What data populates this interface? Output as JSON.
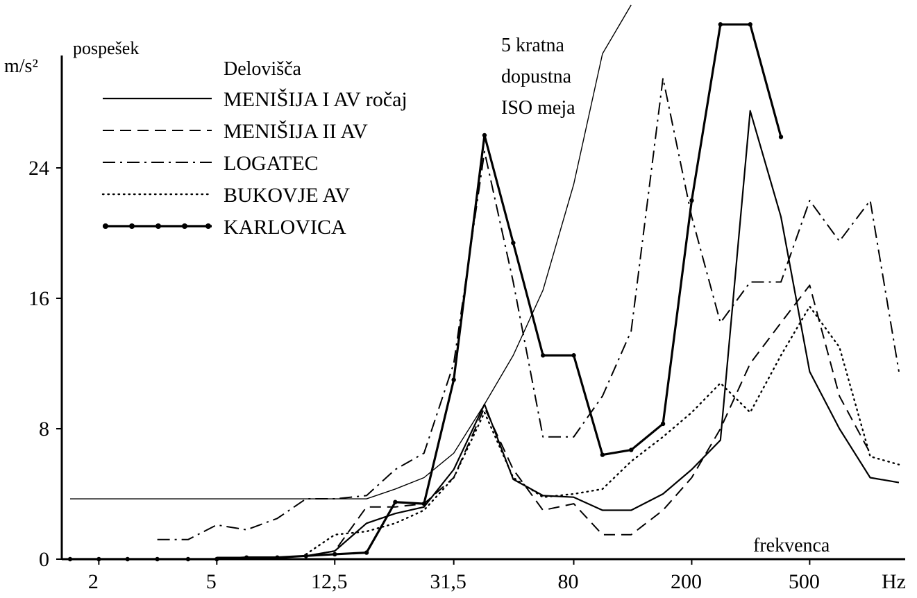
{
  "chart_data": {
    "type": "line",
    "x_label": "frekvenca",
    "x_unit": "Hz",
    "y_label": "pospešek",
    "y_unit": "m/s²",
    "legend_title": "Delovišča",
    "log_x": true,
    "xlim": [
      1.5,
      1050
    ],
    "xticks": [
      2,
      5,
      {
        "value": 12.5,
        "label": "12,5"
      },
      {
        "value": 31.5,
        "label": "31,5"
      },
      80,
      200,
      500
    ],
    "ylim": [
      0,
      34
    ],
    "yticks": [
      0,
      8,
      16,
      24
    ],
    "x": [
      1.6,
      2,
      2.5,
      3.15,
      4,
      5,
      6.3,
      8,
      10,
      12.5,
      16,
      20,
      25,
      31.5,
      40,
      50,
      63,
      80,
      100,
      125,
      160,
      200,
      250,
      315,
      400,
      500,
      630,
      800,
      1000
    ],
    "series": [
      {
        "name": "MENIŠIJA I AV ročaj",
        "color": "#000000",
        "style": "solid",
        "values": [
          null,
          null,
          null,
          null,
          null,
          0.1,
          0.1,
          0.1,
          0.2,
          0.5,
          2.2,
          2.8,
          3.2,
          5.5,
          9.5,
          4.9,
          3.9,
          3.8,
          3,
          3,
          4,
          5.5,
          7.3,
          27.5,
          21,
          11.5,
          8,
          5,
          4.7
        ]
      },
      {
        "name": "MENIŠIJA II AV",
        "color": "#000000",
        "style": "dashed",
        "values": [
          null,
          null,
          null,
          null,
          null,
          null,
          null,
          null,
          0.2,
          0.5,
          3.2,
          3.2,
          3.4,
          5,
          9.3,
          5.5,
          3,
          3.4,
          1.5,
          1.5,
          3,
          5,
          8,
          12,
          14.5,
          16.8,
          10,
          6.5,
          null
        ]
      },
      {
        "name": "LOGATEC",
        "color": "#000000",
        "style": "dashdot",
        "values": [
          null,
          null,
          null,
          1.2,
          1.2,
          2.1,
          1.8,
          2.5,
          3.7,
          3.7,
          3.9,
          5.5,
          6.5,
          12,
          25,
          17,
          7.5,
          7.5,
          10,
          14,
          29.5,
          21,
          14.5,
          17,
          17,
          22,
          19.5,
          22,
          11.5
        ]
      },
      {
        "name": "BUKOVJE AV",
        "color": "#000000",
        "style": "dotted",
        "values": [
          null,
          null,
          null,
          null,
          null,
          null,
          null,
          null,
          0.3,
          1.5,
          1.7,
          2.2,
          3,
          5,
          9,
          5,
          3.8,
          4,
          4.3,
          6,
          7.5,
          9,
          10.8,
          9,
          12.5,
          15.5,
          13,
          6.3,
          5.8
        ]
      },
      {
        "name": "KARLOVICA",
        "color": "#000000",
        "style": "markers",
        "values": [
          0,
          0,
          0,
          0,
          0,
          0,
          0.1,
          0.1,
          0.2,
          0.3,
          0.4,
          3.5,
          3.4,
          11,
          26,
          19.4,
          12.5,
          12.5,
          6.4,
          6.7,
          8.3,
          22,
          32.8,
          32.8,
          25.9,
          null,
          null,
          null,
          null
        ]
      }
    ],
    "limit_curve": {
      "label": [
        "5 kratna",
        "dopustna",
        "ISO meja"
      ],
      "color": "#000000",
      "values": [
        3.7,
        3.7,
        3.7,
        3.7,
        3.7,
        3.7,
        3.7,
        3.7,
        3.7,
        3.7,
        3.7,
        4.3,
        5,
        6.5,
        9.5,
        12.5,
        16.5,
        23,
        31,
        34,
        null,
        null,
        null,
        null,
        null,
        null,
        null,
        null,
        null
      ]
    }
  }
}
